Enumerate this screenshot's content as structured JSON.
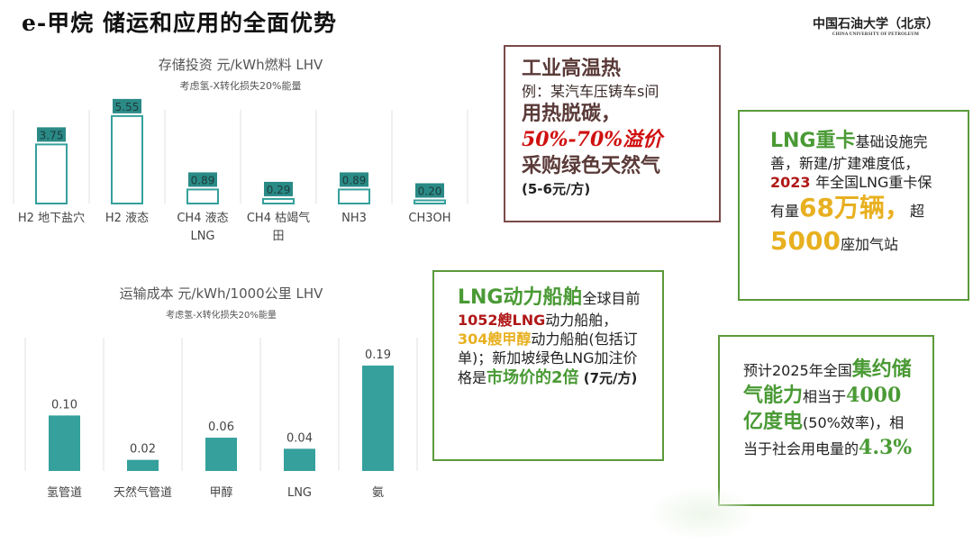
{
  "slide": {
    "title": "e-甲烷  储运和应用的全面优势",
    "logo": {
      "cn": "中国石油大学（北京）",
      "en": "CHINA UNIVERSITY OF PETROLEUM"
    }
  },
  "colors": {
    "teal": "#35a09c",
    "teal_dark": "#2a8a86",
    "green_border": "#5a9a3a",
    "brown_border": "#7a4a48"
  },
  "chart_data": [
    {
      "type": "bar",
      "title": "存储投资 元/kWh燃料 LHV",
      "subtitle": "考虑氢-X转化损失20%能量",
      "categories": [
        "H2 地下盐穴",
        "H2 液态",
        "CH4 液态\nLNG",
        "CH4 枯竭气\n田",
        "NH3",
        "CH3OH"
      ],
      "values": [
        3.75,
        5.55,
        0.89,
        0.29,
        0.89,
        0.2
      ],
      "labels": [
        "3.75",
        "5.55",
        "0.89",
        "0.29",
        "0.89",
        "0.20"
      ],
      "style": "outline",
      "ylim": [
        0,
        5.6
      ]
    },
    {
      "type": "bar",
      "title": "运输成本 元/kWh/1000公里 LHV",
      "subtitle": "考虑氢-X转化损失20%能量",
      "categories": [
        "氢管道",
        "天然气管道",
        "甲醇",
        "LNG",
        "氨"
      ],
      "values": [
        0.1,
        0.02,
        0.06,
        0.04,
        0.19
      ],
      "labels": [
        "0.10",
        "0.02",
        "0.06",
        "0.04",
        "0.19"
      ],
      "style": "filled",
      "ylim": [
        0,
        0.19
      ]
    }
  ],
  "boxes": {
    "industrial": [
      {
        "t": "工业高温热",
        "c": "brownbig",
        "br": true
      },
      {
        "t": "例：某汽车压铸车s间",
        "c": "brownmid",
        "br": true
      },
      {
        "t": "用热脱碳，",
        "c": "brownbig",
        "br": true
      },
      {
        "t": "50%-70%溢价",
        "c": "redital",
        "br": true
      },
      {
        "t": "采购绿色天然气",
        "c": "brownbig",
        "br": true
      },
      {
        "t": "(5-6元/方)",
        "c": "small"
      }
    ],
    "truck": [
      {
        "t": "LNG重卡",
        "c": "green"
      },
      {
        "t": "基础设施完善，新建/扩建难度低，",
        "c": "norm"
      },
      {
        "t": " 2023 ",
        "c": "red"
      },
      {
        "t": "年全国LNG重卡保有量",
        "c": "norm"
      },
      {
        "t": "68万辆，",
        "c": "yellowbig"
      },
      {
        "t": "超",
        "c": "norm"
      },
      {
        "t": "5000",
        "c": "yellowbig"
      },
      {
        "t": "座加气站",
        "c": "norm"
      }
    ],
    "ship": [
      {
        "t": "LNG动力船舶",
        "c": "green"
      },
      {
        "t": "全球目前",
        "c": "norm"
      },
      {
        "t": "1052艘LNG",
        "c": "red"
      },
      {
        "t": "动力船舶，",
        "c": "norm"
      },
      {
        "t": "304艘甲醇",
        "c": "yellow"
      },
      {
        "t": "动力船舶(包括订单)；新加坡绿色LNG加注价格是",
        "c": "norm"
      },
      {
        "t": "市场价的2倍",
        "c": "gnorm"
      },
      {
        "t": " (7元/方)",
        "c": "small"
      }
    ],
    "storage": [
      {
        "t": "预计2025年全国",
        "c": "norm"
      },
      {
        "t": "集约储气能力",
        "c": "green"
      },
      {
        "t": "相当于",
        "c": "norm"
      },
      {
        "t": "4000亿度电",
        "c": "serifgreen"
      },
      {
        "t": "(50%效率)，相当于社会用电量的",
        "c": "norm"
      },
      {
        "t": "4.3%",
        "c": "serifgreen"
      }
    ]
  }
}
